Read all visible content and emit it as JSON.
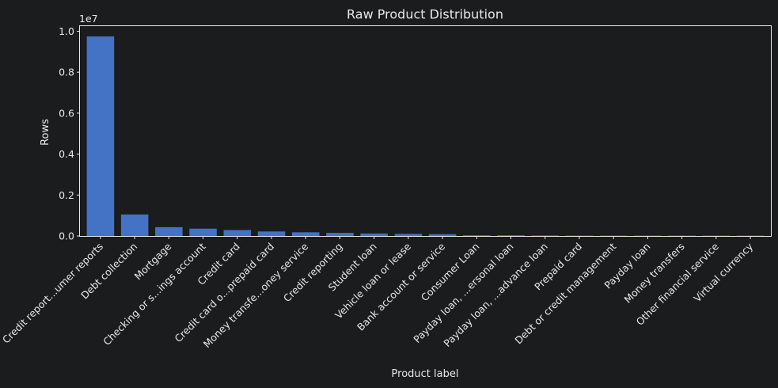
{
  "chart_data": {
    "type": "bar",
    "title": "Raw Product Distribution",
    "xlabel": "Product label",
    "ylabel": "Rows",
    "y_scale_label": "1e7",
    "y_multiplier": 10000000,
    "ylim": [
      0,
      10250000
    ],
    "yticks": [
      0,
      2000000,
      4000000,
      6000000,
      8000000,
      10000000
    ],
    "ytick_labels": [
      "0.0",
      "0.2",
      "0.4",
      "0.6",
      "0.8",
      "1.0"
    ],
    "bar_color": "#4472c4",
    "background_color": "#1a1c1e",
    "text_color": "#e8e8e8",
    "grid": false,
    "categories": [
      "Credit report...umer reports",
      "Debt collection",
      "Mortgage",
      "Checking or s...ings account",
      "Credit card",
      "Credit card o...prepaid card",
      "Money transfe...oney service",
      "Credit reporting",
      "Student loan",
      "Vehicle loan or lease",
      "Bank account or service",
      "Consumer Loan",
      "Payday loan, ...ersonal loan",
      "Payday loan, ...advance loan",
      "Prepaid card",
      "Debt or credit management",
      "Payday loan",
      "Money transfers",
      "Other financial service",
      "Virtual currency"
    ],
    "values": [
      9750000,
      1050000,
      430000,
      360000,
      290000,
      220000,
      180000,
      150000,
      120000,
      100000,
      86000,
      32000,
      32000,
      22000,
      16000,
      2000,
      1800,
      1500,
      1100,
      20
    ]
  }
}
